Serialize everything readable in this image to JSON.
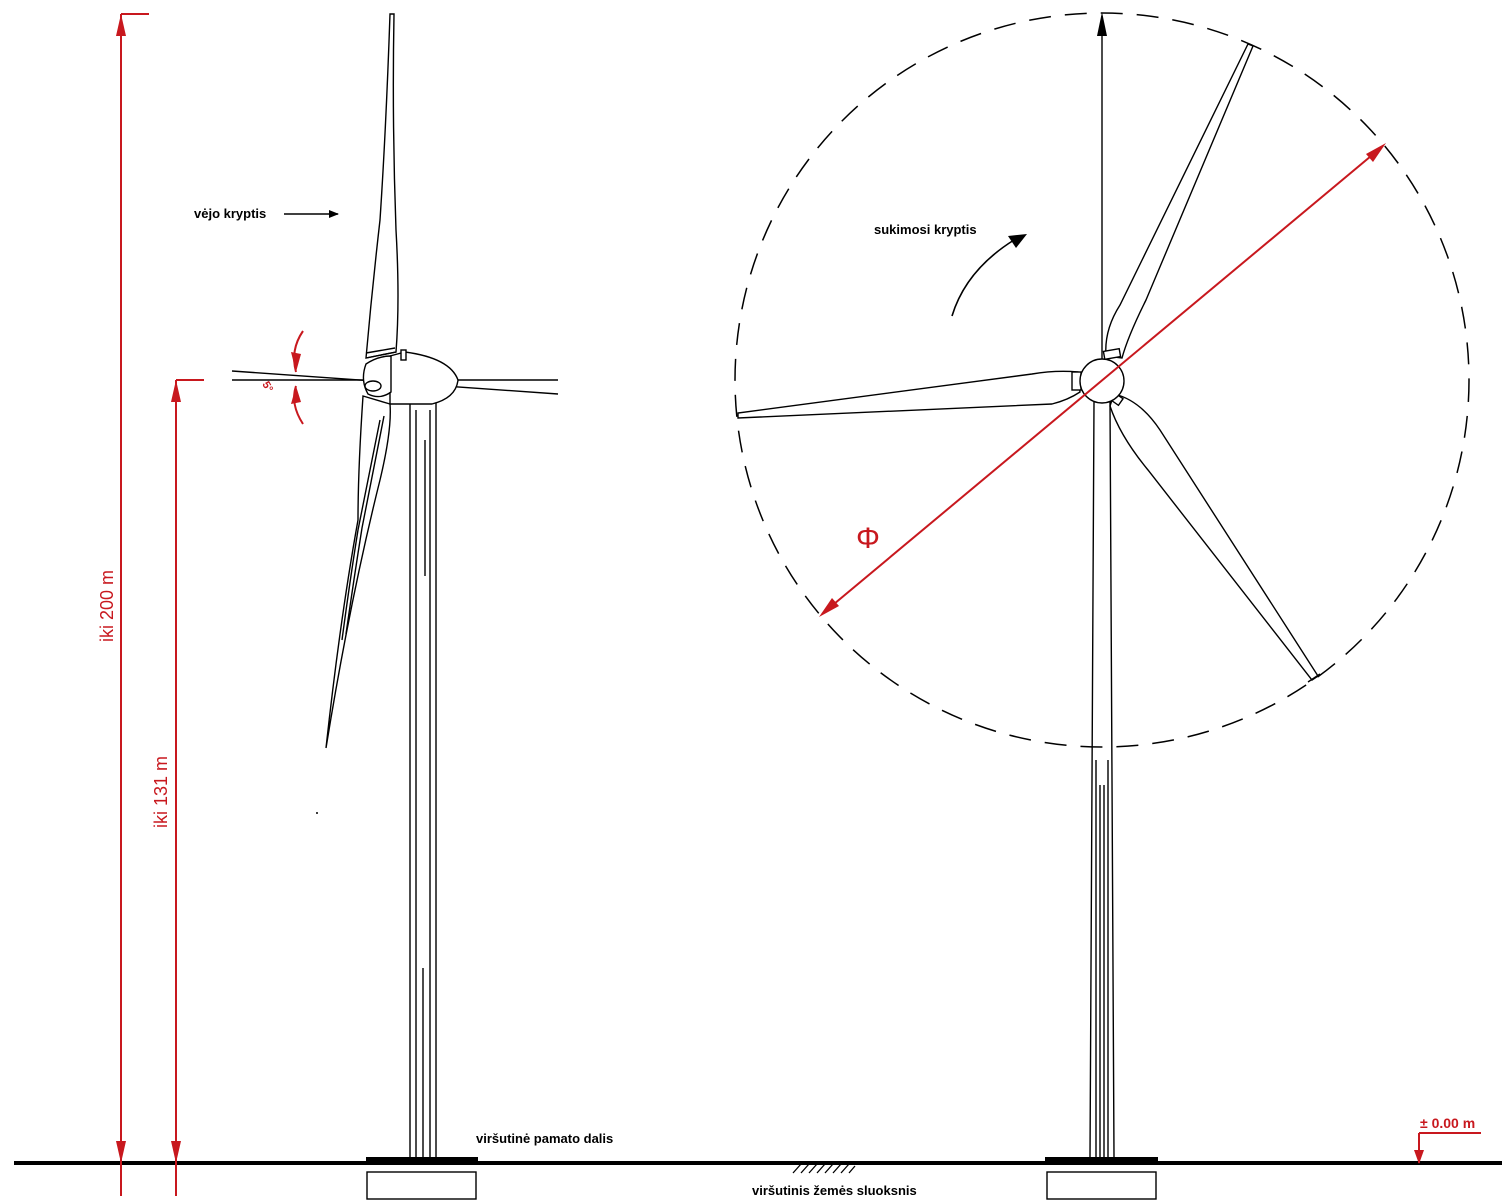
{
  "labels": {
    "height_total": "iki 200 m",
    "height_hub": "iki 131 m",
    "tilt_angle": "5°",
    "wind_direction": "vėjo kryptis",
    "rotation_direction": "sukimosi kryptis",
    "diameter_symbol": "Φ",
    "foundation_top": "viršutinė pamato dalis",
    "ground_layer": "viršutinis žemės sluoksnis",
    "zero_level": "± 0.00 m"
  },
  "colors": {
    "dimension": "#c8181e",
    "line": "#000000",
    "background": "#ffffff"
  }
}
